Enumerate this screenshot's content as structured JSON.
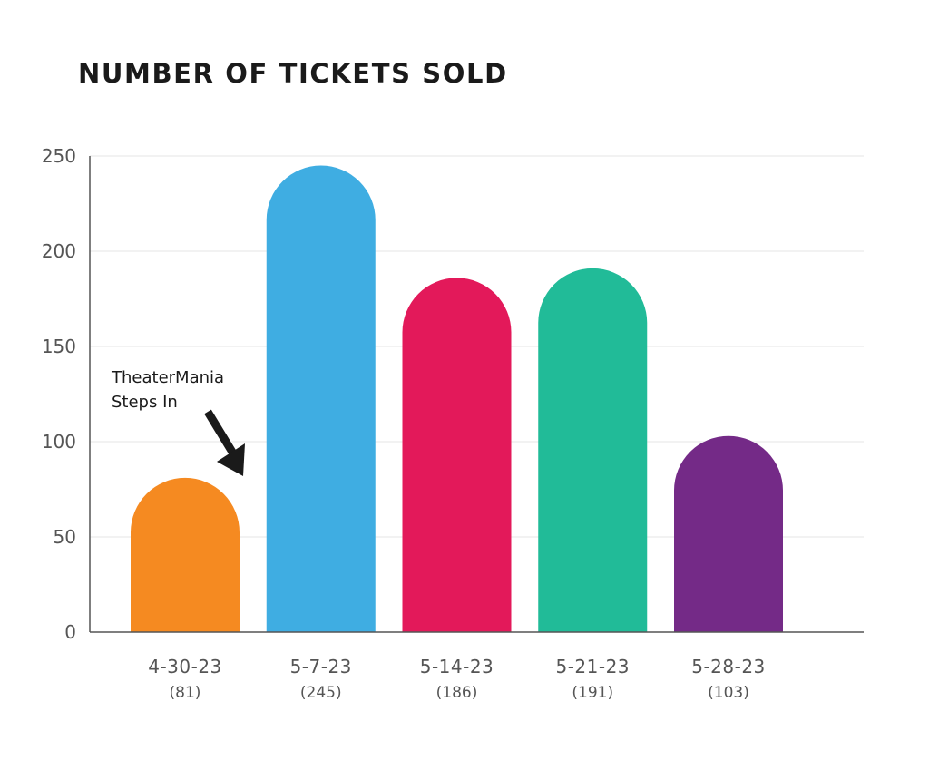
{
  "chart_data": {
    "type": "bar",
    "title": "NUMBER OF TICKETS SOLD",
    "xlabel": "",
    "ylabel": "",
    "categories": [
      "4-30-23",
      "5-7-23",
      "5-14-23",
      "5-21-23",
      "5-28-23"
    ],
    "values": [
      81,
      245,
      186,
      191,
      103
    ],
    "value_labels": [
      "(81)",
      "(245)",
      "(186)",
      "(191)",
      "(103)"
    ],
    "colors": [
      "#F58A21",
      "#3FADE2",
      "#E3195A",
      "#21BB98",
      "#742A87"
    ],
    "ylim": [
      0,
      250
    ],
    "yticks": [
      0,
      50,
      100,
      150,
      200,
      250
    ],
    "grid": true,
    "annotation": {
      "lines": [
        "TheaterMania",
        "Steps In"
      ],
      "points_to_category": "5-7-23"
    }
  }
}
